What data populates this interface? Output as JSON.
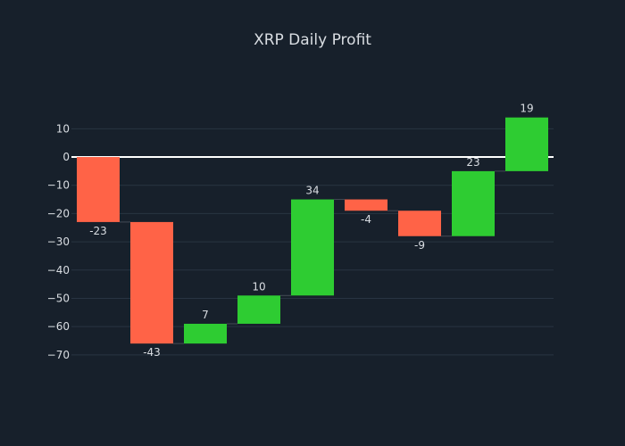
{
  "chart_data": {
    "type": "waterfall",
    "title": "XRP Daily Profit",
    "xlabel": "",
    "ylabel": "",
    "ylim": [
      -77,
      24
    ],
    "yticks": [
      10,
      0,
      -10,
      -20,
      -30,
      -40,
      -50,
      -60,
      -70
    ],
    "ytick_labels": [
      "10",
      "0",
      "−10",
      "−20",
      "−30",
      "−40",
      "−50",
      "−60",
      "−70"
    ],
    "values": [
      -23,
      -43,
      7,
      10,
      34,
      -4,
      -9,
      23,
      19
    ],
    "value_labels": [
      "-23",
      "-43",
      "7",
      "10",
      "34",
      "-4",
      "-9",
      "23",
      "19"
    ],
    "grid": true,
    "legend": false
  },
  "colors": {
    "background": "#17202b",
    "increase": "#2ecc32",
    "decrease": "#ff6347",
    "grid": "#283442",
    "zero_line": "#ffffff",
    "text": "#d9dde2",
    "connector": "#444b55"
  }
}
